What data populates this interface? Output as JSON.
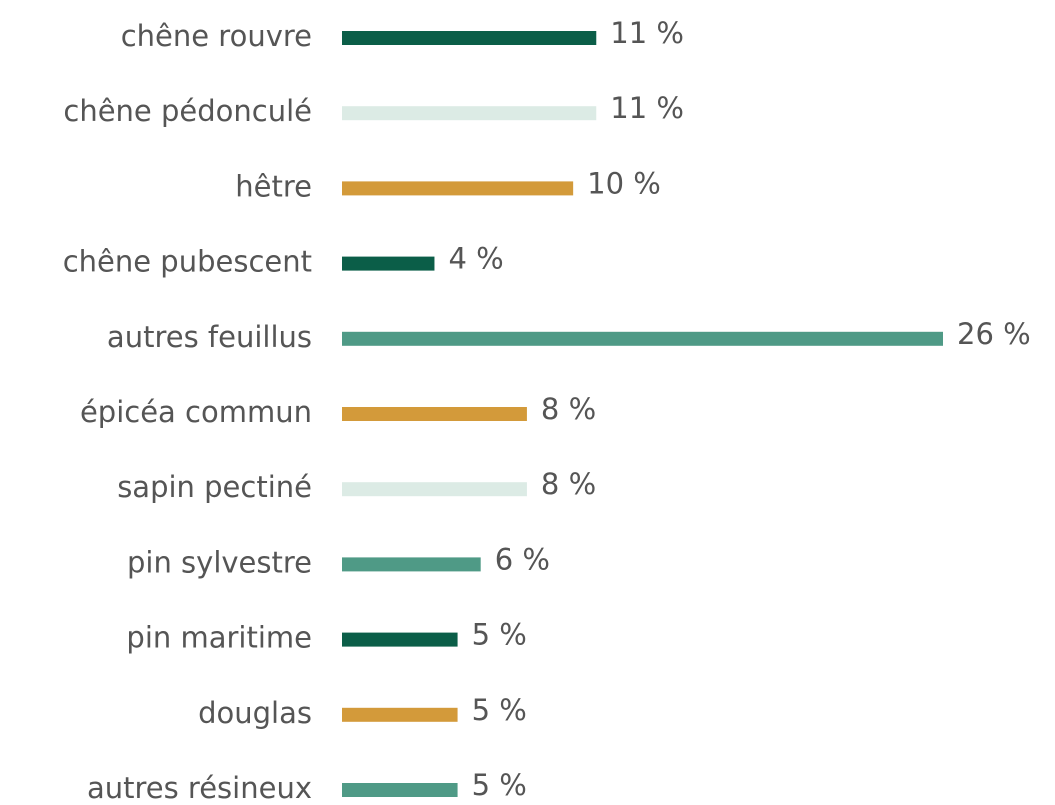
{
  "chart_data": {
    "type": "bar",
    "orientation": "horizontal",
    "categories": [
      "chêne rouvre",
      "chêne pédonculé",
      "hêtre",
      "chêne pubescent",
      "autres feuillus",
      "épicéa commun",
      "sapin pectiné",
      "pin sylvestre",
      "pin maritime",
      "douglas",
      "autres résineux"
    ],
    "values": [
      11,
      11,
      10,
      4,
      26,
      8,
      8,
      6,
      5,
      5,
      5
    ],
    "value_labels": [
      "11 %",
      "11 %",
      "10 %",
      "4 %",
      "26 %",
      "8 %",
      "8 %",
      "6 %",
      "5 %",
      "5 %",
      "5 %"
    ],
    "colors": [
      "#0b5e48",
      "#dcebe5",
      "#d39a3a",
      "#0b5e48",
      "#4f9a86",
      "#d39a3a",
      "#dcebe5",
      "#4f9a86",
      "#0b5e48",
      "#d39a3a",
      "#4f9a86"
    ]
  }
}
